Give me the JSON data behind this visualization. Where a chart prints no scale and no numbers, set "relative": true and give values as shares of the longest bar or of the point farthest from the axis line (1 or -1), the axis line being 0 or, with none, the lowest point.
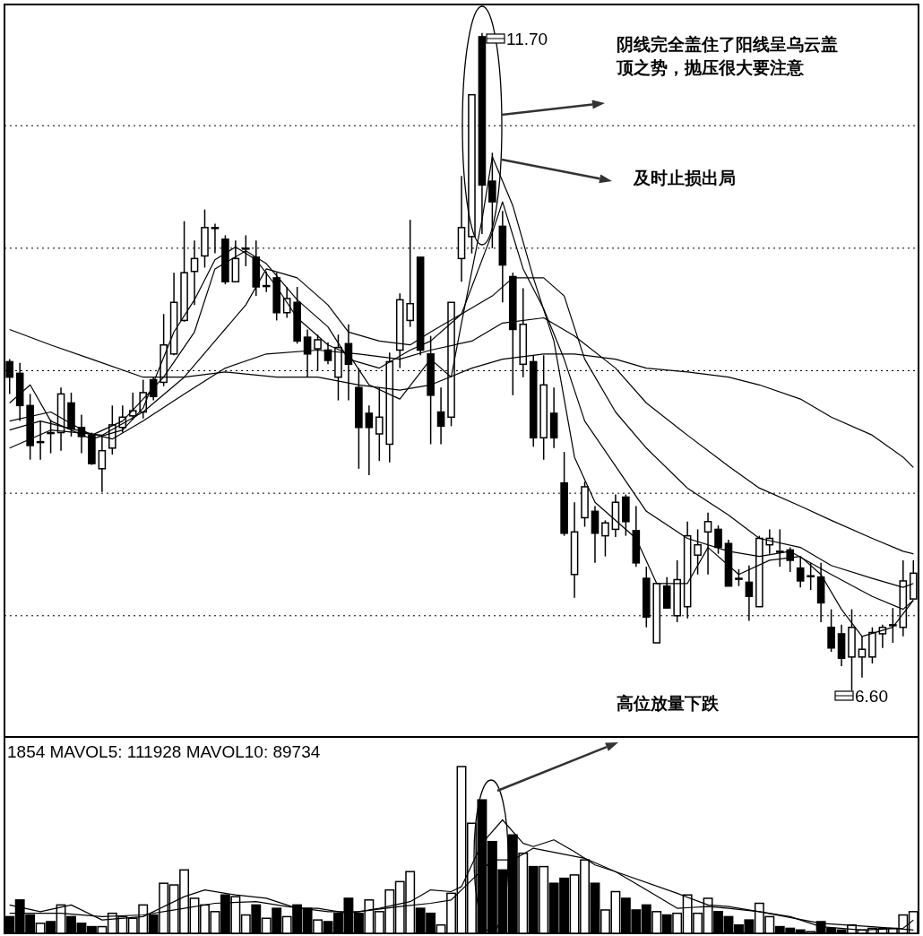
{
  "chart_data": [
    {
      "type": "candlestick",
      "color": "#000000",
      "categories": [
        null,
        null,
        null,
        null,
        null,
        null,
        null,
        null,
        null,
        null,
        null,
        null,
        null,
        null,
        null,
        null,
        null,
        null,
        null,
        null,
        null,
        null,
        null,
        null,
        null,
        null,
        null,
        null,
        null,
        null,
        null,
        null,
        null,
        null,
        null,
        null,
        null,
        null,
        null,
        null,
        null,
        null,
        null,
        null,
        null,
        null,
        null,
        null,
        null,
        null,
        null,
        null,
        null,
        null,
        null,
        null,
        null,
        null,
        null,
        null,
        null,
        null,
        null,
        null,
        null,
        null,
        null,
        null,
        null,
        null,
        null,
        null,
        null,
        null,
        null,
        null,
        null,
        null,
        null,
        null,
        null,
        null,
        null,
        null,
        null,
        null,
        null,
        null,
        null
      ],
      "ohlc": [
        [
          9.15,
          9.17,
          8.9,
          9.03
        ],
        [
          9.06,
          9.14,
          8.69,
          8.81
        ],
        [
          8.81,
          8.9,
          8.39,
          8.5
        ],
        [
          8.53,
          8.69,
          8.39,
          8.53
        ],
        [
          8.6,
          8.7,
          8.44,
          8.6
        ],
        [
          8.6,
          8.95,
          8.46,
          8.9
        ],
        [
          8.83,
          8.91,
          8.57,
          8.63
        ],
        [
          8.64,
          8.74,
          8.44,
          8.57
        ],
        [
          8.58,
          8.6,
          8.35,
          8.36
        ],
        [
          8.32,
          8.57,
          8.14,
          8.46
        ],
        [
          8.48,
          8.81,
          8.43,
          8.66
        ],
        [
          8.64,
          8.81,
          8.6,
          8.72
        ],
        [
          8.73,
          8.91,
          8.7,
          8.77
        ],
        [
          8.76,
          9.01,
          8.71,
          8.91
        ],
        [
          9.01,
          9.03,
          8.85,
          8.88
        ],
        [
          8.99,
          9.52,
          8.96,
          9.28
        ],
        [
          9.21,
          9.84,
          9.2,
          9.61
        ],
        [
          9.47,
          10.24,
          9.46,
          9.84
        ],
        [
          9.85,
          10.09,
          9.59,
          9.95
        ],
        [
          9.97,
          10.33,
          9.88,
          10.19
        ],
        [
          10.19,
          10.22,
          9.99,
          10.19
        ],
        [
          10.1,
          10.13,
          9.75,
          9.77
        ],
        [
          9.77,
          10.09,
          9.77,
          9.95
        ],
        [
          10.03,
          10.13,
          9.89,
          10.03
        ],
        [
          9.96,
          10.09,
          9.66,
          9.73
        ],
        [
          9.74,
          9.85,
          9.69,
          9.74
        ],
        [
          9.8,
          9.84,
          9.47,
          9.53
        ],
        [
          9.53,
          9.73,
          9.49,
          9.64
        ],
        [
          9.61,
          9.73,
          9.29,
          9.31
        ],
        [
          9.34,
          9.4,
          9.03,
          9.21
        ],
        [
          9.25,
          9.36,
          9.08,
          9.32
        ],
        [
          9.24,
          9.3,
          9.13,
          9.16
        ],
        [
          9.03,
          9.36,
          8.85,
          9.26
        ],
        [
          9.29,
          9.44,
          8.85,
          9.13
        ],
        [
          8.95,
          9.1,
          8.32,
          8.64
        ],
        [
          8.75,
          8.81,
          8.27,
          8.64
        ],
        [
          8.59,
          8.95,
          8.38,
          8.72
        ],
        [
          8.51,
          9.22,
          8.37,
          9.15
        ],
        [
          9.24,
          9.68,
          9.1,
          9.63
        ],
        [
          9.47,
          10.25,
          9.42,
          9.6
        ],
        [
          9.96,
          9.96,
          9.2,
          9.24
        ],
        [
          9.21,
          9.35,
          8.51,
          8.89
        ],
        [
          8.76,
          8.95,
          8.51,
          8.65
        ],
        [
          8.72,
          9.61,
          8.65,
          9.61
        ],
        [
          9.95,
          10.59,
          9.77,
          10.19
        ],
        [
          10.12,
          11.22,
          9.99,
          11.22
        ],
        [
          11.67,
          11.7,
          10.14,
          10.52
        ],
        [
          10.55,
          10.77,
          10.03,
          10.39
        ],
        [
          10.2,
          10.32,
          9.61,
          9.9
        ],
        [
          9.81,
          9.84,
          8.89,
          9.4
        ],
        [
          9.13,
          9.72,
          9.03,
          9.44
        ],
        [
          9.15,
          9.2,
          8.49,
          8.56
        ],
        [
          8.56,
          9.2,
          8.39,
          8.97
        ],
        [
          8.75,
          8.95,
          8.48,
          8.56
        ],
        [
          8.21,
          8.45,
          7.8,
          7.82
        ],
        [
          7.5,
          8.06,
          7.32,
          7.83
        ],
        [
          7.94,
          8.22,
          7.87,
          8.18
        ],
        [
          7.99,
          8.03,
          7.59,
          7.82
        ],
        [
          7.8,
          7.92,
          7.64,
          7.9
        ],
        [
          7.85,
          8.12,
          7.79,
          8.06
        ],
        [
          8.1,
          8.12,
          7.8,
          7.91
        ],
        [
          7.84,
          8.03,
          7.56,
          7.59
        ],
        [
          7.47,
          7.56,
          7.09,
          7.17
        ],
        [
          6.97,
          7.43,
          6.97,
          7.43
        ],
        [
          7.41,
          7.48,
          7.24,
          7.24
        ],
        [
          7.18,
          7.61,
          7.13,
          7.46
        ],
        [
          7.25,
          7.91,
          7.16,
          7.8
        ],
        [
          7.65,
          7.85,
          7.5,
          7.73
        ],
        [
          7.83,
          7.98,
          7.5,
          7.91
        ],
        [
          7.85,
          7.88,
          7.66,
          7.71
        ],
        [
          7.74,
          7.77,
          7.41,
          7.41
        ],
        [
          7.47,
          7.54,
          7.41,
          7.47
        ],
        [
          7.44,
          7.57,
          7.14,
          7.33
        ],
        [
          7.25,
          7.8,
          7.25,
          7.78
        ],
        [
          7.73,
          7.85,
          7.66,
          7.78
        ],
        [
          7.68,
          7.85,
          7.56,
          7.68
        ],
        [
          7.69,
          7.71,
          7.52,
          7.61
        ],
        [
          7.55,
          7.63,
          7.4,
          7.45
        ],
        [
          7.49,
          7.59,
          7.38,
          7.49
        ],
        [
          7.48,
          7.59,
          7.13,
          7.28
        ],
        [
          7.09,
          7.23,
          6.9,
          6.93
        ],
        [
          7.04,
          7.11,
          6.79,
          6.85
        ],
        [
          6.86,
          7.23,
          6.6,
          7.09
        ],
        [
          6.86,
          7.02,
          6.7,
          6.92
        ],
        [
          6.86,
          7.09,
          6.81,
          7.05
        ],
        [
          7.04,
          7.11,
          6.93,
          7.09
        ],
        [
          7.11,
          7.24,
          6.97,
          7.11
        ],
        [
          7.09,
          7.61,
          7.02,
          7.45
        ],
        [
          7.31,
          7.61,
          7.31,
          7.51
        ]
      ],
      "series": [
        {
          "type": "line",
          "color": "#000000",
          "values": [
            8.83,
            null,
            8.97,
            null,
            8.69,
            null,
            null,
            null,
            8.55,
            null,
            null,
            8.62,
            null,
            8.79,
            null,
            null,
            9.38,
            null,
            9.63,
            null,
            9.94,
            null,
            10.04,
            null,
            9.94,
            null,
            9.73,
            null,
            9.49,
            null,
            null,
            9.28,
            null,
            9.21,
            null,
            8.97,
            null,
            null,
            8.86,
            null,
            null,
            9.17,
            null,
            9.03,
            9.45,
            null,
            10.25,
            10.74,
            null,
            10.36,
            null,
            9.8,
            null,
            9.31,
            null,
            8.41,
            null,
            8.06,
            null,
            null,
            null,
            7.78,
            null,
            7.43,
            null,
            null,
            7.43,
            null,
            7.71,
            null,
            null,
            7.5,
            null,
            null,
            7.61,
            null,
            null,
            7.64,
            null,
            7.5,
            null,
            7.23,
            null,
            7.02,
            null,
            null,
            7.09,
            null,
            7.3
          ]
        },
        {
          "type": "line",
          "color": "#000000",
          "values": [
            8.69,
            null,
            null,
            null,
            8.76,
            null,
            null,
            null,
            8.58,
            null,
            null,
            8.69,
            null,
            null,
            null,
            9.03,
            null,
            null,
            9.38,
            null,
            9.87,
            null,
            null,
            10.01,
            null,
            9.91,
            null,
            null,
            9.63,
            null,
            null,
            9.42,
            null,
            9.17,
            null,
            null,
            9.1,
            null,
            null,
            9.24,
            null,
            9.31,
            null,
            null,
            9.52,
            null,
            null,
            10.15,
            10.39,
            null,
            9.87,
            null,
            9.56,
            null,
            9.17,
            null,
            8.69,
            null,
            null,
            8.34,
            null,
            null,
            7.99,
            null,
            null,
            null,
            7.78,
            null,
            null,
            null,
            7.68,
            null,
            null,
            7.64,
            null,
            null,
            7.68,
            null,
            null,
            null,
            7.5,
            null,
            null,
            null,
            7.33,
            null,
            null,
            7.23,
            7.3
          ]
        },
        {
          "type": "line",
          "color": "#000000",
          "values": [
            8.48,
            null,
            null,
            null,
            8.62,
            null,
            null,
            null,
            null,
            8.58,
            null,
            null,
            null,
            8.76,
            null,
            null,
            null,
            9.03,
            null,
            null,
            9.31,
            null,
            null,
            9.59,
            null,
            9.87,
            null,
            null,
            9.8,
            null,
            null,
            9.59,
            null,
            9.38,
            null,
            null,
            9.31,
            null,
            null,
            9.28,
            null,
            9.38,
            null,
            null,
            9.52,
            null,
            null,
            9.66,
            null,
            9.8,
            null,
            null,
            9.8,
            null,
            9.66,
            null,
            9.17,
            null,
            null,
            8.76,
            null,
            null,
            8.48,
            null,
            null,
            null,
            8.17,
            null,
            null,
            null,
            7.96,
            null,
            null,
            7.78,
            null,
            null,
            null,
            7.71,
            null,
            null,
            7.57,
            null,
            null,
            null,
            7.47,
            null,
            null,
            7.4,
            7.43
          ]
        },
        {
          "type": "line",
          "color": "#000000",
          "values": [
            8.62,
            null,
            null,
            8.69,
            null,
            null,
            null,
            null,
            null,
            null,
            8.55,
            null,
            null,
            8.69,
            null,
            null,
            null,
            8.9,
            null,
            null,
            null,
            9.1,
            null,
            null,
            null,
            9.21,
            null,
            null,
            null,
            null,
            9.24,
            null,
            null,
            null,
            9.21,
            null,
            null,
            null,
            9.17,
            null,
            null,
            9.24,
            null,
            null,
            null,
            9.31,
            null,
            null,
            9.45,
            null,
            null,
            null,
            9.49,
            null,
            null,
            9.35,
            null,
            null,
            null,
            9.1,
            null,
            null,
            8.83,
            null,
            null,
            null,
            8.58,
            null,
            null,
            null,
            8.34,
            null,
            null,
            8.17,
            null,
            null,
            null,
            8.03,
            null,
            null,
            7.92,
            null,
            null,
            null,
            7.78,
            null,
            null,
            7.68,
            7.66
          ]
        },
        {
          "type": "line",
          "color": "#000000",
          "values": [
            9.4,
            null,
            null,
            null,
            9.28,
            null,
            null,
            null,
            9.17,
            null,
            null,
            null,
            null,
            9.03,
            null,
            null,
            null,
            9.03,
            null,
            null,
            null,
            9.07,
            null,
            null,
            null,
            null,
            9.03,
            null,
            null,
            null,
            9.03,
            null,
            null,
            null,
            8.97,
            null,
            null,
            null,
            8.93,
            null,
            null,
            8.97,
            null,
            null,
            null,
            9.1,
            null,
            null,
            9.17,
            null,
            null,
            null,
            9.21,
            null,
            null,
            9.21,
            null,
            null,
            null,
            9.17,
            null,
            null,
            9.1,
            null,
            null,
            null,
            9.07,
            null,
            null,
            null,
            9.03,
            null,
            null,
            8.97,
            null,
            null,
            null,
            8.86,
            null,
            null,
            8.72,
            null,
            null,
            null,
            8.58,
            null,
            null,
            8.41,
            8.33
          ]
        }
      ],
      "ylim": [
        6.24,
        11.92
      ],
      "yticks": [
        {
          "value": 10.98,
          "label": null
        },
        {
          "value": 10.03,
          "label": null
        },
        {
          "value": 9.08,
          "label": null
        },
        {
          "value": 8.13,
          "label": null
        },
        {
          "value": 7.18,
          "label": null
        }
      ],
      "grid": "y",
      "annotations": [
        "阴线完全盖住了阳线呈乌云盖顶之势，抛压很大要注意",
        "及时止损出局",
        "11.70",
        "6.60"
      ]
    },
    {
      "type": "bar",
      "relative": true,
      "title": "1854 MAVOL5: 111928 MAVOL10: 89734",
      "categories": [
        null,
        null,
        null,
        null,
        null,
        null,
        null,
        null,
        null,
        null,
        null,
        null,
        null,
        null,
        null,
        null,
        null,
        null,
        null,
        null,
        null,
        null,
        null,
        null,
        null,
        null,
        null,
        null,
        null,
        null,
        null,
        null,
        null,
        null,
        null,
        null,
        null,
        null,
        null,
        null,
        null,
        null,
        null,
        null,
        null,
        null,
        null,
        null,
        null,
        null,
        null,
        null,
        null,
        null,
        null,
        null,
        null,
        null,
        null,
        null,
        null,
        null,
        null,
        null,
        null,
        null,
        null,
        null,
        null,
        null,
        null,
        null,
        null,
        null,
        null,
        null,
        null,
        null,
        null,
        null,
        null,
        null,
        null,
        null,
        null,
        null,
        null,
        null,
        null
      ],
      "series": [
        {
          "type": "bar",
          "values": [
            0.1,
            0.2,
            0.11,
            0.06,
            0.07,
            0.17,
            0.1,
            0.06,
            0.04,
            0.04,
            0.12,
            0.1,
            0.09,
            0.17,
            0.11,
            0.3,
            0.29,
            0.38,
            0.21,
            0.17,
            0.13,
            0.23,
            0.22,
            0.11,
            0.17,
            0.09,
            0.15,
            0.1,
            0.17,
            0.15,
            0.08,
            0.07,
            0.12,
            0.21,
            0.12,
            0.2,
            0.13,
            0.26,
            0.31,
            0.37,
            0.15,
            0.12,
            0.05,
            0.24,
            1.0,
            0.66,
            0.8,
            0.55,
            0.38,
            0.59,
            0.48,
            0.4,
            0.4,
            0.3,
            0.33,
            0.35,
            0.44,
            0.3,
            0.14,
            0.25,
            0.21,
            0.14,
            0.17,
            0.13,
            0.11,
            0.12,
            0.23,
            0.12,
            0.21,
            0.13,
            0.1,
            0.05,
            0.08,
            0.18,
            0.1,
            0.04,
            0.03,
            0.02,
            0.01,
            0.07,
            0.03,
            0.02,
            0.05,
            0.02,
            0.03,
            0.03,
            0.03,
            0.11,
            0.13
          ],
          "colors": [
            "#000000",
            "#000000",
            "#000000",
            "#ffffff",
            "#000000",
            "#ffffff",
            "#000000",
            "#000000",
            "#000000",
            "#ffffff",
            "#ffffff",
            "#ffffff",
            "#ffffff",
            "#ffffff",
            "#000000",
            "#ffffff",
            "#ffffff",
            "#ffffff",
            "#ffffff",
            "#ffffff",
            "#ffffff",
            "#000000",
            "#ffffff",
            "#ffffff",
            "#000000",
            "#ffffff",
            "#000000",
            "#ffffff",
            "#000000",
            "#000000",
            "#ffffff",
            "#000000",
            "#000000",
            "#000000",
            "#000000",
            "#ffffff",
            "#ffffff",
            "#ffffff",
            "#ffffff",
            "#ffffff",
            "#000000",
            "#000000",
            "#ffffff",
            "#ffffff",
            "#ffffff",
            "#ffffff",
            "#000000",
            "#000000",
            "#000000",
            "#000000",
            "#ffffff",
            "#000000",
            "#ffffff",
            "#000000",
            "#000000",
            "#ffffff",
            "#ffffff",
            "#000000",
            "#ffffff",
            "#ffffff",
            "#000000",
            "#000000",
            "#000000",
            "#ffffff",
            "#000000",
            "#ffffff",
            "#ffffff",
            "#ffffff",
            "#ffffff",
            "#000000",
            "#000000",
            "#000000",
            "#000000",
            "#ffffff",
            "#ffffff",
            "#000000",
            "#000000",
            "#000000",
            "#ffffff",
            "#000000",
            "#000000",
            "#000000",
            "#ffffff",
            "#ffffff",
            "#ffffff",
            "#ffffff",
            "#ffffff",
            "#ffffff",
            "#ffffff"
          ]
        },
        {
          "type": "line",
          "color": "#000000",
          "values": [
            0.17,
            null,
            null,
            0.13,
            null,
            null,
            0.17,
            null,
            null,
            0.08,
            null,
            null,
            null,
            0.1,
            null,
            null,
            null,
            0.22,
            null,
            0.26,
            null,
            null,
            0.23,
            null,
            null,
            0.21,
            null,
            null,
            0.15,
            null,
            0.15,
            null,
            null,
            0.12,
            null,
            null,
            0.15,
            null,
            null,
            0.19,
            null,
            0.26,
            null,
            0.25,
            0.28,
            null,
            0.54,
            null,
            0.68,
            null,
            0.54,
            0.52,
            null,
            0.56,
            null,
            0.49,
            null,
            0.41,
            null,
            0.37,
            null,
            null,
            0.26,
            null,
            null,
            0.15,
            null,
            null,
            0.16,
            null,
            0.15,
            null,
            null,
            0.13,
            null,
            null,
            0.1,
            null,
            null,
            0.04,
            null,
            null,
            null,
            0.02,
            null,
            null,
            null,
            0.03,
            0.08
          ]
        },
        {
          "type": "line",
          "color": "#000000",
          "values": [
            0.12,
            null,
            null,
            null,
            null,
            0.12,
            null,
            null,
            null,
            0.1,
            null,
            null,
            null,
            0.11,
            null,
            null,
            null,
            0.15,
            null,
            null,
            0.18,
            null,
            null,
            null,
            0.19,
            null,
            null,
            0.16,
            null,
            null,
            null,
            0.13,
            null,
            null,
            0.13,
            null,
            null,
            null,
            0.16,
            null,
            null,
            0.18,
            null,
            0.2,
            0.26,
            null,
            null,
            0.44,
            null,
            0.44,
            null,
            0.51,
            null,
            null,
            null,
            null,
            0.45,
            null,
            null,
            0.37,
            null,
            null,
            null,
            null,
            null,
            0.24,
            null,
            null,
            0.17,
            null,
            0.16,
            null,
            null,
            0.13,
            null,
            null,
            null,
            null,
            null,
            0.06,
            null,
            null,
            null,
            null,
            0.04,
            null,
            null,
            null,
            0.02
          ]
        }
      ],
      "annotations": [
        "高位放量下跌"
      ]
    }
  ]
}
